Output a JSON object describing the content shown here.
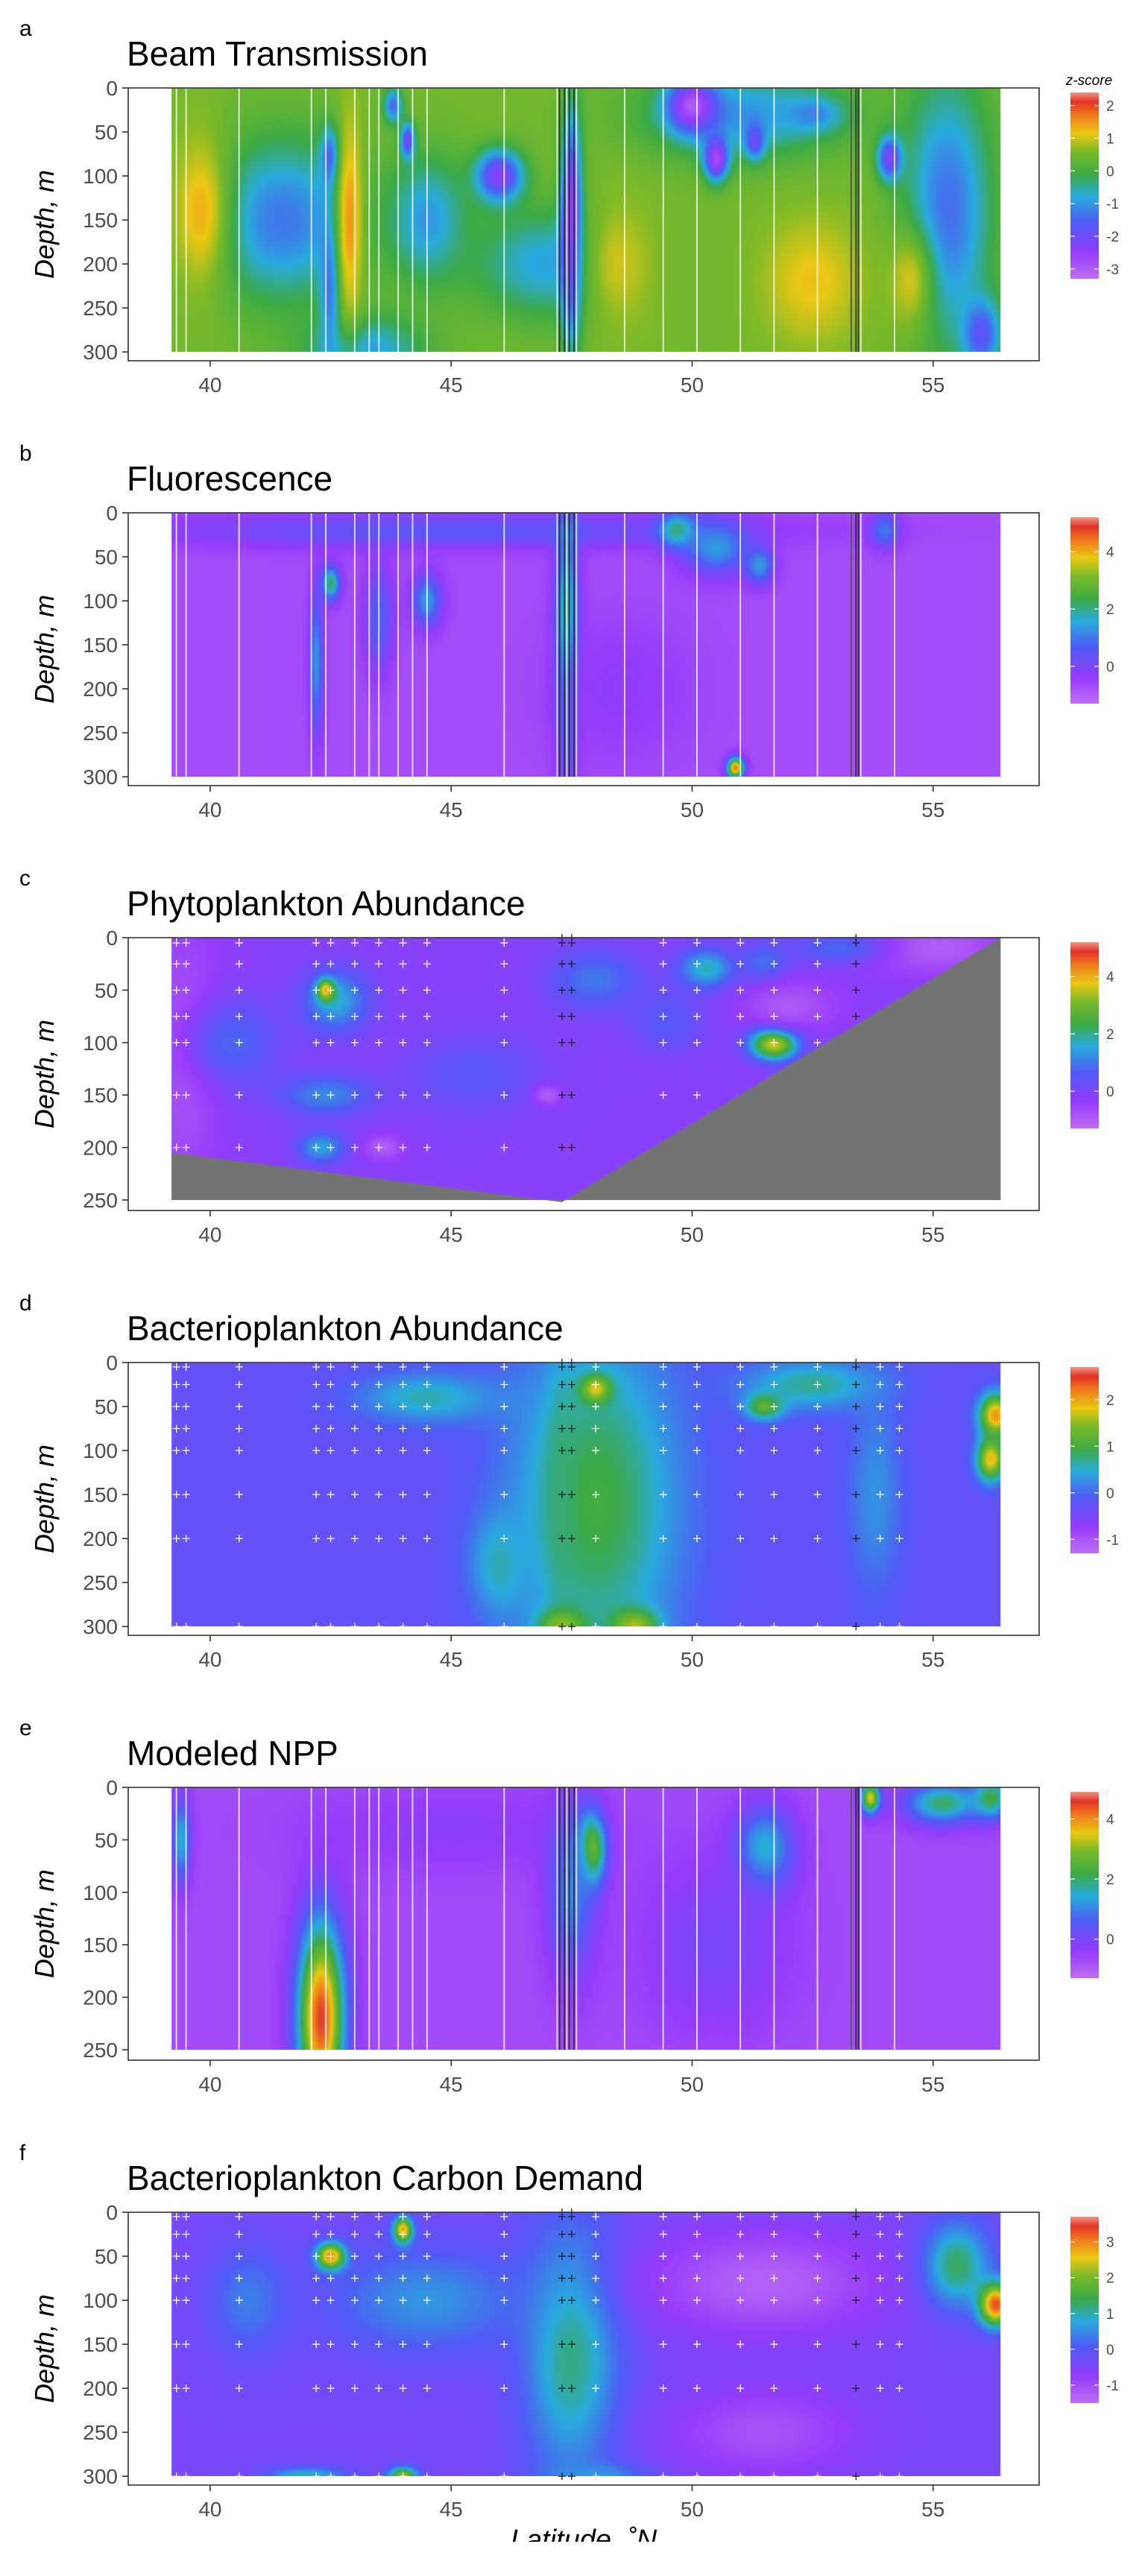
{
  "chart_data": [
    {
      "type": "heatmap",
      "panel_label": "a",
      "title": "Beam Transmission",
      "ylabel": "Depth, m",
      "xlabel": "",
      "xlim": [
        38.3,
        57.2
      ],
      "ylim": [
        0,
        310
      ],
      "x_ticks": [
        40,
        45,
        50,
        55
      ],
      "y_ticks": [
        0,
        50,
        100,
        150,
        200,
        250,
        300
      ],
      "colorbar": {
        "title": "z-score",
        "ticks": [
          2,
          1,
          0,
          -1,
          -2,
          -3
        ],
        "range": [
          -3.3,
          2.4
        ]
      },
      "data_extent": {
        "x": [
          39.2,
          56.4
        ],
        "y": [
          0,
          300
        ]
      },
      "background_zscore": 0.5,
      "bottom_mask": [],
      "station_lines": [
        39.3,
        39.5,
        40.6,
        42.1,
        42.4,
        43.0,
        43.3,
        43.5,
        43.9,
        44.2,
        44.5,
        46.1,
        47.2,
        47.4,
        47.6,
        48.6,
        49.4,
        50.1,
        51.0,
        51.7,
        52.6,
        53.3,
        53.5,
        54.2
      ],
      "dark_lines": [
        47.25,
        47.35,
        47.45,
        47.55,
        53.3,
        53.4,
        53.45
      ],
      "features": [
        {
          "x": 41.5,
          "y": 150,
          "sx": 1.5,
          "sy": 90,
          "z": -1.3
        },
        {
          "x": 44.5,
          "y": 150,
          "sx": 0.8,
          "sy": 70,
          "z": -1.0
        },
        {
          "x": 47.0,
          "y": 200,
          "sx": 1.5,
          "sy": 60,
          "z": -0.9
        },
        {
          "x": 51.0,
          "y": 30,
          "sx": 2.0,
          "sy": 50,
          "z": -1.0
        },
        {
          "x": 55.3,
          "y": 140,
          "sx": 0.9,
          "sy": 150,
          "z": -1.4
        },
        {
          "x": 43.2,
          "y": 300,
          "sx": 1.2,
          "sy": 40,
          "z": -1.0
        },
        {
          "x": 42.5,
          "y": 80,
          "sx": 0.2,
          "sy": 35,
          "z": -1.8
        },
        {
          "x": 42.5,
          "y": 220,
          "sx": 0.22,
          "sy": 80,
          "z": -1.6
        },
        {
          "x": 43.8,
          "y": 20,
          "sx": 0.2,
          "sy": 20,
          "z": -1.4
        },
        {
          "x": 44.1,
          "y": 60,
          "sx": 0.15,
          "sy": 20,
          "z": -2.0
        },
        {
          "x": 46.0,
          "y": 100,
          "sx": 0.5,
          "sy": 30,
          "z": -2.3
        },
        {
          "x": 47.5,
          "y": 160,
          "sx": 0.22,
          "sy": 120,
          "z": -3.0
        },
        {
          "x": 50.0,
          "y": 20,
          "sx": 0.5,
          "sy": 30,
          "z": -3.0
        },
        {
          "x": 50.5,
          "y": 80,
          "sx": 0.25,
          "sy": 25,
          "z": -2.8
        },
        {
          "x": 51.3,
          "y": 60,
          "sx": 0.2,
          "sy": 20,
          "z": -2.0
        },
        {
          "x": 52.5,
          "y": 30,
          "sx": 0.6,
          "sy": 20,
          "z": -1.2
        },
        {
          "x": 54.1,
          "y": 80,
          "sx": 0.25,
          "sy": 25,
          "z": -2.2
        },
        {
          "x": 56.0,
          "y": 280,
          "sx": 0.4,
          "sy": 40,
          "z": -1.8
        },
        {
          "x": 39.8,
          "y": 140,
          "sx": 0.6,
          "sy": 90,
          "z": 1.3
        },
        {
          "x": 42.9,
          "y": 150,
          "sx": 0.3,
          "sy": 120,
          "z": 1.5
        },
        {
          "x": 48.5,
          "y": 200,
          "sx": 0.8,
          "sy": 80,
          "z": 1.0
        },
        {
          "x": 52.5,
          "y": 220,
          "sx": 1.0,
          "sy": 70,
          "z": 1.2
        },
        {
          "x": 54.5,
          "y": 220,
          "sx": 0.5,
          "sy": 60,
          "z": 1.0
        }
      ]
    },
    {
      "type": "heatmap",
      "panel_label": "b",
      "title": "Fluorescence",
      "ylabel": "Depth, m",
      "xlabel": "",
      "xlim": [
        38.3,
        57.2
      ],
      "ylim": [
        0,
        310
      ],
      "x_ticks": [
        40,
        45,
        50,
        55
      ],
      "y_ticks": [
        0,
        50,
        100,
        150,
        200,
        250,
        300
      ],
      "colorbar": {
        "title": "",
        "ticks": [
          4,
          2,
          0
        ],
        "range": [
          -1.3,
          5.2
        ]
      },
      "data_extent": {
        "x": [
          39.2,
          56.4
        ],
        "y": [
          0,
          300
        ]
      },
      "background_zscore": -0.7,
      "bottom_mask": [],
      "station_lines": [
        39.3,
        39.5,
        40.6,
        42.1,
        42.4,
        43.0,
        43.3,
        43.5,
        43.9,
        44.2,
        44.5,
        46.1,
        47.2,
        47.4,
        47.6,
        48.6,
        49.4,
        50.1,
        51.0,
        51.7,
        52.6,
        53.3,
        53.5,
        54.2
      ],
      "dark_lines": [
        47.25,
        47.35,
        47.45,
        47.55,
        53.3,
        53.4,
        53.45
      ],
      "features": [
        {
          "x": 45.0,
          "y": 20,
          "sx": 6.0,
          "sy": 20,
          "z": 0.5
        },
        {
          "x": 42.5,
          "y": 80,
          "sx": 0.2,
          "sy": 20,
          "z": 2.2
        },
        {
          "x": 42.2,
          "y": 170,
          "sx": 0.15,
          "sy": 80,
          "z": 1.3
        },
        {
          "x": 44.5,
          "y": 100,
          "sx": 0.3,
          "sy": 30,
          "z": 1.4
        },
        {
          "x": 43.5,
          "y": 120,
          "sx": 0.3,
          "sy": 60,
          "z": 0.7
        },
        {
          "x": 47.4,
          "y": 150,
          "sx": 0.25,
          "sy": 130,
          "z": 2.6
        },
        {
          "x": 49.7,
          "y": 20,
          "sx": 0.4,
          "sy": 20,
          "z": 2.2
        },
        {
          "x": 50.5,
          "y": 40,
          "sx": 0.7,
          "sy": 30,
          "z": 1.4
        },
        {
          "x": 51.4,
          "y": 60,
          "sx": 0.3,
          "sy": 20,
          "z": 1.4
        },
        {
          "x": 50.9,
          "y": 290,
          "sx": 0.18,
          "sy": 12,
          "z": 4.5
        },
        {
          "x": 54.0,
          "y": 20,
          "sx": 0.3,
          "sy": 20,
          "z": 1.0
        },
        {
          "x": 48.5,
          "y": 200,
          "sx": 1.5,
          "sy": 80,
          "z": -0.3
        }
      ]
    },
    {
      "type": "heatmap",
      "panel_label": "c",
      "title": "Phytoplankton Abundance",
      "ylabel": "Depth, m",
      "xlabel": "",
      "xlim": [
        38.3,
        57.2
      ],
      "ylim": [
        0,
        260
      ],
      "x_ticks": [
        40,
        45,
        50,
        55
      ],
      "y_ticks": [
        0,
        50,
        100,
        150,
        200,
        250
      ],
      "colorbar": {
        "title": "",
        "ticks": [
          4,
          2,
          0
        ],
        "range": [
          -1.3,
          5.2
        ]
      },
      "data_extent": {
        "x": [
          39.2,
          56.4
        ],
        "y": [
          0,
          250
        ]
      },
      "background_zscore": -0.2,
      "bottom_mask": [
        [
          39.2,
          205
        ],
        [
          47.3,
          252
        ],
        [
          56.4,
          0
        ]
      ],
      "station_lines": [],
      "dark_lines": [],
      "features": [
        {
          "x": 39.5,
          "y": 110,
          "sx": 0.7,
          "sy": 120,
          "z": -0.9
        },
        {
          "x": 40.5,
          "y": 100,
          "sx": 1.0,
          "sy": 40,
          "z": 0.8
        },
        {
          "x": 42.6,
          "y": 60,
          "sx": 0.7,
          "sy": 30,
          "z": 1.6
        },
        {
          "x": 42.4,
          "y": 50,
          "sx": 0.18,
          "sy": 10,
          "z": 4.0
        },
        {
          "x": 42.4,
          "y": 150,
          "sx": 1.0,
          "sy": 20,
          "z": 1.2
        },
        {
          "x": 42.3,
          "y": 200,
          "sx": 0.5,
          "sy": 15,
          "z": 1.5
        },
        {
          "x": 43.6,
          "y": 200,
          "sx": 0.4,
          "sy": 12,
          "z": -1.0
        },
        {
          "x": 45.5,
          "y": 130,
          "sx": 1.5,
          "sy": 40,
          "z": 0.5
        },
        {
          "x": 47.0,
          "y": 150,
          "sx": 0.3,
          "sy": 10,
          "z": -1.0
        },
        {
          "x": 48.0,
          "y": 40,
          "sx": 1.0,
          "sy": 30,
          "z": 1.0
        },
        {
          "x": 50.3,
          "y": 30,
          "sx": 0.6,
          "sy": 20,
          "z": 1.8
        },
        {
          "x": 51.5,
          "y": 25,
          "sx": 0.5,
          "sy": 20,
          "z": 1.0
        },
        {
          "x": 51.7,
          "y": 100,
          "sx": 0.5,
          "sy": 16,
          "z": 4.2
        },
        {
          "x": 49.5,
          "y": 80,
          "sx": 0.8,
          "sy": 30,
          "z": 0.6
        },
        {
          "x": 52.0,
          "y": 65,
          "sx": 1.0,
          "sy": 25,
          "z": -0.9
        },
        {
          "x": 55.0,
          "y": 10,
          "sx": 1.5,
          "sy": 25,
          "z": -1.0
        },
        {
          "x": 53.0,
          "y": 10,
          "sx": 1.0,
          "sy": 15,
          "z": 0.8
        }
      ],
      "sample_points": {
        "x": [
          39.3,
          39.5,
          40.6,
          42.2,
          42.5,
          43.0,
          43.5,
          44.0,
          44.5,
          46.1,
          47.3,
          47.5,
          49.4,
          50.1,
          51.0,
          51.7,
          52.6,
          53.4
        ],
        "y": [
          0,
          5,
          25,
          50,
          75,
          100,
          150,
          200
        ]
      }
    },
    {
      "type": "heatmap",
      "panel_label": "d",
      "title": "Bacterioplankton Abundance",
      "ylabel": "Depth, m",
      "xlabel": "",
      "xlim": [
        38.3,
        57.2
      ],
      "ylim": [
        0,
        310
      ],
      "x_ticks": [
        40,
        45,
        50,
        55
      ],
      "y_ticks": [
        0,
        50,
        100,
        150,
        200,
        250,
        300
      ],
      "colorbar": {
        "title": "",
        "ticks": [
          2,
          1,
          0,
          -1
        ],
        "range": [
          -1.3,
          2.7
        ]
      },
      "data_extent": {
        "x": [
          39.2,
          56.4
        ],
        "y": [
          0,
          300
        ]
      },
      "background_zscore": -0.3,
      "bottom_mask": [],
      "station_lines": [],
      "dark_lines": [],
      "features": [
        {
          "x": 48.0,
          "y": 160,
          "sx": 1.8,
          "sy": 200,
          "z": 1.0
        },
        {
          "x": 46.0,
          "y": 230,
          "sx": 0.6,
          "sy": 60,
          "z": 0.6
        },
        {
          "x": 47.3,
          "y": 150,
          "sx": 0.3,
          "sy": 120,
          "z": 0.8
        },
        {
          "x": 44.5,
          "y": 40,
          "sx": 1.5,
          "sy": 30,
          "z": 0.6
        },
        {
          "x": 52.5,
          "y": 25,
          "sx": 1.5,
          "sy": 30,
          "z": 0.7
        },
        {
          "x": 53.8,
          "y": 150,
          "sx": 0.6,
          "sy": 120,
          "z": 0.3
        },
        {
          "x": 56.3,
          "y": 60,
          "sx": 0.35,
          "sy": 25,
          "z": 2.1
        },
        {
          "x": 56.2,
          "y": 110,
          "sx": 0.3,
          "sy": 25,
          "z": 1.9
        },
        {
          "x": 51.5,
          "y": 50,
          "sx": 0.4,
          "sy": 15,
          "z": 1.2
        },
        {
          "x": 48.0,
          "y": 30,
          "sx": 0.3,
          "sy": 15,
          "z": 1.8
        },
        {
          "x": 47.3,
          "y": 300,
          "sx": 0.5,
          "sy": 20,
          "z": 1.5
        },
        {
          "x": 48.8,
          "y": 300,
          "sx": 0.5,
          "sy": 20,
          "z": 1.6
        },
        {
          "x": 39.8,
          "y": 150,
          "sx": 0.8,
          "sy": 150,
          "z": -0.3
        }
      ],
      "sample_points": {
        "x": [
          39.3,
          39.5,
          40.6,
          42.2,
          42.5,
          43.0,
          43.5,
          44.0,
          44.5,
          46.1,
          47.3,
          47.5,
          48.0,
          49.4,
          50.1,
          51.0,
          51.7,
          52.6,
          53.4,
          53.9,
          54.3
        ],
        "y": [
          0,
          5,
          25,
          50,
          75,
          100,
          150,
          200,
          300
        ]
      }
    },
    {
      "type": "heatmap",
      "panel_label": "e",
      "title": "Modeled NPP",
      "ylabel": "Depth, m",
      "xlabel": "",
      "xlim": [
        38.3,
        57.2
      ],
      "ylim": [
        0,
        260
      ],
      "x_ticks": [
        40,
        45,
        50,
        55
      ],
      "y_ticks": [
        0,
        50,
        100,
        150,
        200,
        250
      ],
      "colorbar": {
        "title": "",
        "ticks": [
          4,
          2,
          0
        ],
        "range": [
          -1.3,
          4.9
        ]
      },
      "data_extent": {
        "x": [
          39.2,
          56.4
        ],
        "y": [
          0,
          250
        ]
      },
      "background_zscore": -0.7,
      "bottom_mask": [],
      "station_lines": [
        39.3,
        39.5,
        40.6,
        42.1,
        42.4,
        43.0,
        43.3,
        43.5,
        43.9,
        44.2,
        44.5,
        46.1,
        47.2,
        47.4,
        47.6,
        48.6,
        49.4,
        50.1,
        51.0,
        51.7,
        52.6,
        53.3,
        53.5,
        54.2
      ],
      "dark_lines": [
        47.25,
        47.35,
        47.45,
        47.55,
        53.3,
        53.4,
        53.45
      ],
      "features": [
        {
          "x": 42.3,
          "y": 220,
          "sx": 0.5,
          "sy": 95,
          "z": 4.5
        },
        {
          "x": 45.0,
          "y": 40,
          "sx": 3.0,
          "sy": 40,
          "z": -0.3
        },
        {
          "x": 47.9,
          "y": 60,
          "sx": 0.3,
          "sy": 35,
          "z": 3.6
        },
        {
          "x": 47.5,
          "y": 100,
          "sx": 0.5,
          "sy": 80,
          "z": 1.0
        },
        {
          "x": 51.5,
          "y": 60,
          "sx": 0.6,
          "sy": 40,
          "z": 1.8
        },
        {
          "x": 50.5,
          "y": 150,
          "sx": 1.5,
          "sy": 80,
          "z": 0.0
        },
        {
          "x": 53.7,
          "y": 10,
          "sx": 0.2,
          "sy": 15,
          "z": 3.5
        },
        {
          "x": 55.2,
          "y": 15,
          "sx": 0.8,
          "sy": 20,
          "z": 2.0
        },
        {
          "x": 56.2,
          "y": 10,
          "sx": 0.4,
          "sy": 20,
          "z": 2.2
        },
        {
          "x": 39.4,
          "y": 50,
          "sx": 0.2,
          "sy": 40,
          "z": 1.5
        }
      ]
    },
    {
      "type": "heatmap",
      "panel_label": "f",
      "title": "Bacterioplankton Carbon Demand",
      "ylabel": "Depth, m",
      "xlabel": "Latitude, ˚N",
      "xlim": [
        38.3,
        57.2
      ],
      "ylim": [
        0,
        310
      ],
      "x_ticks": [
        40,
        45,
        50,
        55
      ],
      "y_ticks": [
        0,
        50,
        100,
        150,
        200,
        250,
        300
      ],
      "colorbar": {
        "title": "",
        "ticks": [
          3,
          2,
          1,
          0,
          -1
        ],
        "range": [
          -1.5,
          3.7
        ]
      },
      "data_extent": {
        "x": [
          39.2,
          56.4
        ],
        "y": [
          0,
          300
        ]
      },
      "background_zscore": -0.4,
      "bottom_mask": [],
      "station_lines": [],
      "dark_lines": [],
      "features": [
        {
          "x": 47.5,
          "y": 160,
          "sx": 1.0,
          "sy": 150,
          "z": 1.2
        },
        {
          "x": 44.5,
          "y": 100,
          "sx": 2.0,
          "sy": 60,
          "z": 0.6
        },
        {
          "x": 40.8,
          "y": 100,
          "sx": 0.8,
          "sy": 60,
          "z": 0.4
        },
        {
          "x": 42.5,
          "y": 50,
          "sx": 0.3,
          "sy": 15,
          "z": 3.0
        },
        {
          "x": 44.0,
          "y": 20,
          "sx": 0.2,
          "sy": 15,
          "z": 2.8
        },
        {
          "x": 44.0,
          "y": 300,
          "sx": 0.3,
          "sy": 10,
          "z": 2.2
        },
        {
          "x": 42.0,
          "y": 300,
          "sx": 0.8,
          "sy": 10,
          "z": 1.0
        },
        {
          "x": 51.5,
          "y": 80,
          "sx": 2.5,
          "sy": 60,
          "z": -1.3
        },
        {
          "x": 51.5,
          "y": 250,
          "sx": 2.0,
          "sy": 50,
          "z": -1.1
        },
        {
          "x": 55.5,
          "y": 60,
          "sx": 0.7,
          "sy": 50,
          "z": 1.3
        },
        {
          "x": 56.3,
          "y": 105,
          "sx": 0.35,
          "sy": 25,
          "z": 3.3
        },
        {
          "x": 48.0,
          "y": 300,
          "sx": 1.0,
          "sy": 15,
          "z": 0.6
        }
      ],
      "sample_points": {
        "x": [
          39.3,
          39.5,
          40.6,
          42.2,
          42.5,
          43.0,
          43.5,
          44.0,
          44.5,
          46.1,
          47.3,
          47.5,
          48.0,
          49.4,
          50.1,
          51.0,
          51.7,
          52.6,
          53.4,
          53.9,
          54.3
        ],
        "y": [
          0,
          5,
          25,
          50,
          75,
          100,
          150,
          200,
          300
        ]
      }
    }
  ]
}
